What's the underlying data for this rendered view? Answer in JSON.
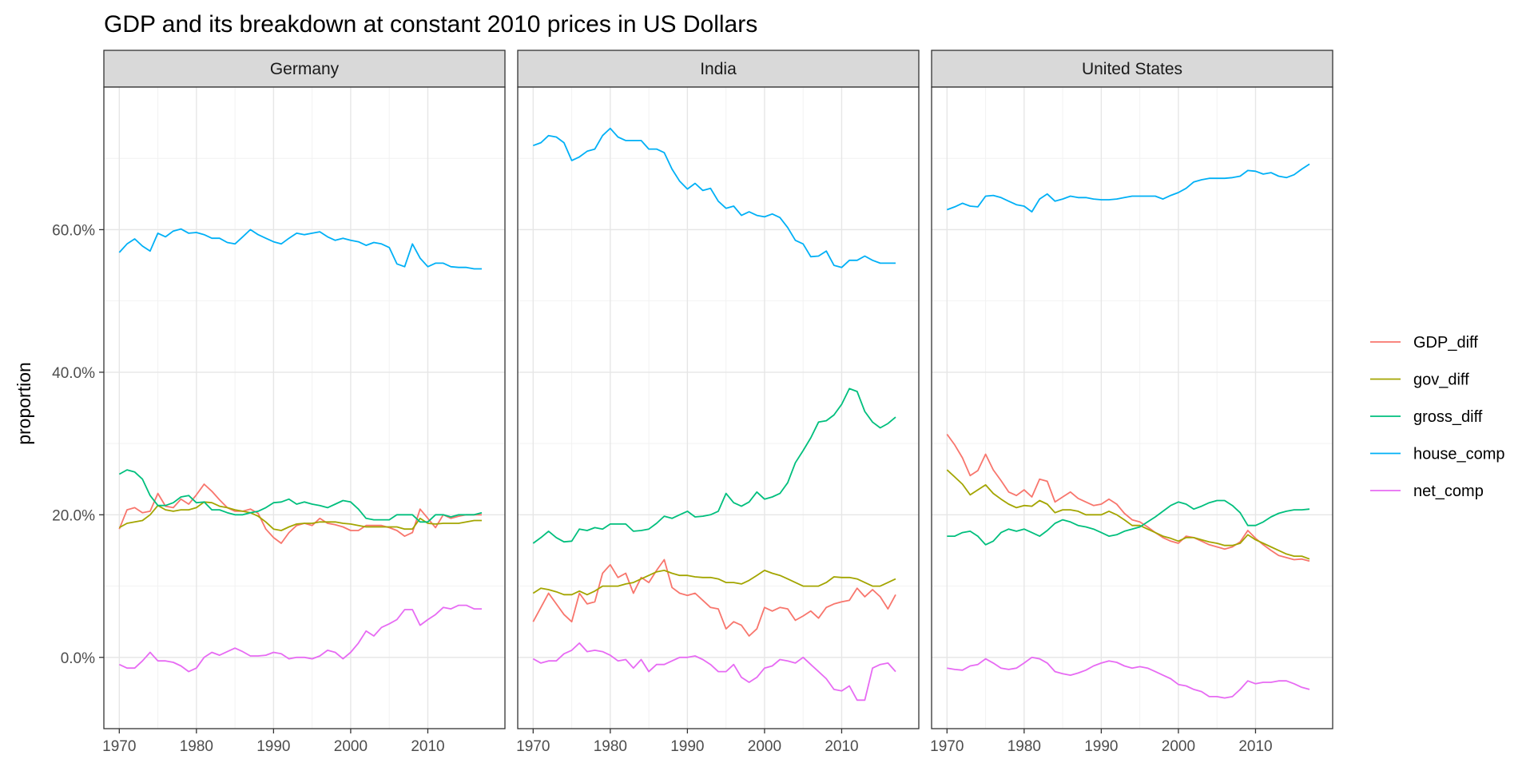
{
  "chart_data": {
    "type": "line",
    "title": "GDP and its breakdown at constant 2010 prices in US Dollars",
    "xlabel": "",
    "ylabel": "proportion",
    "y_format": "percent",
    "xlim": [
      1968,
      2020
    ],
    "ylim": [
      -0.1,
      0.8
    ],
    "x_ticks": [
      1970,
      1980,
      1990,
      2000,
      2010
    ],
    "x_tick_labels": [
      "1970",
      "1980",
      "1990",
      "2000",
      "2010"
    ],
    "y_ticks": [
      0,
      0.2,
      0.4,
      0.6
    ],
    "y_tick_labels": [
      "0.0%",
      "20.0%",
      "40.0%",
      "60.0%"
    ],
    "grid": true,
    "legend_position": "right",
    "legend": [
      "GDP_diff",
      "gov_diff",
      "gross_diff",
      "house_comp",
      "net_comp"
    ],
    "colors": {
      "GDP_diff": "#F8766D",
      "gov_diff": "#A3A500",
      "gross_diff": "#00BF7D",
      "house_comp": "#00B0F6",
      "net_comp": "#E76BF3"
    },
    "x": [
      1970,
      1971,
      1972,
      1973,
      1974,
      1975,
      1976,
      1977,
      1978,
      1979,
      1980,
      1981,
      1982,
      1983,
      1984,
      1985,
      1986,
      1987,
      1988,
      1989,
      1990,
      1991,
      1992,
      1993,
      1994,
      1995,
      1996,
      1997,
      1998,
      1999,
      2000,
      2001,
      2002,
      2003,
      2004,
      2005,
      2006,
      2007,
      2008,
      2009,
      2010,
      2011,
      2012,
      2013,
      2014,
      2015,
      2016,
      2017
    ],
    "panels": [
      {
        "name": "Germany",
        "series": [
          {
            "name": "GDP_diff",
            "values": [
              0.18,
              0.207,
              0.21,
              0.203,
              0.205,
              0.23,
              0.212,
              0.21,
              0.222,
              0.215,
              0.228,
              0.243,
              0.233,
              0.221,
              0.21,
              0.205,
              0.205,
              0.208,
              0.202,
              0.18,
              0.168,
              0.16,
              0.175,
              0.185,
              0.188,
              0.185,
              0.195,
              0.188,
              0.186,
              0.183,
              0.178,
              0.178,
              0.185,
              0.185,
              0.185,
              0.182,
              0.178,
              0.17,
              0.175,
              0.208,
              0.195,
              0.182,
              0.2,
              0.195,
              0.198,
              0.2,
              0.2,
              0.2
            ]
          },
          {
            "name": "gov_diff",
            "values": [
              0.182,
              0.188,
              0.19,
              0.192,
              0.2,
              0.213,
              0.207,
              0.205,
              0.207,
              0.207,
              0.21,
              0.218,
              0.217,
              0.212,
              0.21,
              0.207,
              0.205,
              0.203,
              0.198,
              0.19,
              0.18,
              0.178,
              0.183,
              0.187,
              0.188,
              0.188,
              0.19,
              0.19,
              0.19,
              0.188,
              0.187,
              0.185,
              0.183,
              0.183,
              0.183,
              0.183,
              0.183,
              0.18,
              0.18,
              0.195,
              0.188,
              0.187,
              0.188,
              0.188,
              0.188,
              0.19,
              0.192,
              0.192
            ]
          },
          {
            "name": "gross_diff",
            "values": [
              0.257,
              0.263,
              0.26,
              0.25,
              0.227,
              0.213,
              0.213,
              0.217,
              0.225,
              0.227,
              0.217,
              0.218,
              0.207,
              0.207,
              0.203,
              0.2,
              0.2,
              0.203,
              0.205,
              0.21,
              0.217,
              0.218,
              0.222,
              0.215,
              0.218,
              0.215,
              0.213,
              0.21,
              0.215,
              0.22,
              0.218,
              0.208,
              0.195,
              0.193,
              0.193,
              0.193,
              0.2,
              0.2,
              0.2,
              0.19,
              0.19,
              0.2,
              0.2,
              0.197,
              0.2,
              0.2,
              0.2,
              0.203
            ]
          },
          {
            "name": "house_comp",
            "values": [
              0.568,
              0.58,
              0.587,
              0.577,
              0.57,
              0.595,
              0.59,
              0.598,
              0.601,
              0.595,
              0.596,
              0.593,
              0.588,
              0.588,
              0.582,
              0.58,
              0.59,
              0.6,
              0.593,
              0.588,
              0.583,
              0.58,
              0.588,
              0.595,
              0.593,
              0.595,
              0.597,
              0.59,
              0.585,
              0.588,
              0.585,
              0.583,
              0.578,
              0.582,
              0.58,
              0.575,
              0.552,
              0.548,
              0.58,
              0.56,
              0.548,
              0.553,
              0.553,
              0.548,
              0.547,
              0.547,
              0.545,
              0.545
            ]
          },
          {
            "name": "net_comp",
            "values": [
              -0.01,
              -0.015,
              -0.015,
              -0.005,
              0.007,
              -0.005,
              -0.005,
              -0.007,
              -0.012,
              -0.02,
              -0.015,
              0.0,
              0.007,
              0.003,
              0.008,
              0.013,
              0.008,
              0.002,
              0.002,
              0.003,
              0.007,
              0.005,
              -0.002,
              0.0,
              0.0,
              -0.002,
              0.002,
              0.01,
              0.007,
              -0.002,
              0.007,
              0.02,
              0.037,
              0.03,
              0.042,
              0.047,
              0.053,
              0.067,
              0.067,
              0.045,
              0.053,
              0.06,
              0.07,
              0.068,
              0.073,
              0.073,
              0.068,
              0.068
            ]
          }
        ]
      },
      {
        "name": "India",
        "series": [
          {
            "name": "GDP_diff",
            "values": [
              0.05,
              0.07,
              0.09,
              0.075,
              0.06,
              0.05,
              0.09,
              0.075,
              0.078,
              0.118,
              0.13,
              0.112,
              0.118,
              0.09,
              0.112,
              0.105,
              0.122,
              0.137,
              0.098,
              0.09,
              0.087,
              0.09,
              0.08,
              0.07,
              0.068,
              0.04,
              0.05,
              0.045,
              0.03,
              0.04,
              0.07,
              0.065,
              0.07,
              0.068,
              0.052,
              0.058,
              0.065,
              0.055,
              0.07,
              0.075,
              0.078,
              0.08,
              0.097,
              0.085,
              0.095,
              0.085,
              0.068,
              0.088
            ]
          },
          {
            "name": "gov_diff",
            "values": [
              0.09,
              0.097,
              0.095,
              0.092,
              0.088,
              0.088,
              0.093,
              0.088,
              0.093,
              0.1,
              0.1,
              0.1,
              0.103,
              0.105,
              0.11,
              0.115,
              0.12,
              0.122,
              0.118,
              0.115,
              0.115,
              0.113,
              0.112,
              0.112,
              0.11,
              0.105,
              0.105,
              0.103,
              0.108,
              0.115,
              0.122,
              0.118,
              0.115,
              0.11,
              0.105,
              0.1,
              0.1,
              0.1,
              0.105,
              0.113,
              0.112,
              0.112,
              0.11,
              0.105,
              0.1,
              0.1,
              0.105,
              0.11
            ]
          },
          {
            "name": "gross_diff",
            "values": [
              0.16,
              0.168,
              0.177,
              0.168,
              0.162,
              0.163,
              0.18,
              0.178,
              0.182,
              0.18,
              0.187,
              0.187,
              0.187,
              0.177,
              0.178,
              0.18,
              0.188,
              0.198,
              0.195,
              0.2,
              0.205,
              0.197,
              0.198,
              0.2,
              0.205,
              0.23,
              0.217,
              0.212,
              0.218,
              0.232,
              0.222,
              0.225,
              0.23,
              0.245,
              0.273,
              0.29,
              0.308,
              0.33,
              0.332,
              0.34,
              0.355,
              0.377,
              0.373,
              0.345,
              0.33,
              0.322,
              0.328,
              0.337
            ]
          },
          {
            "name": "house_comp",
            "values": [
              0.718,
              0.722,
              0.732,
              0.73,
              0.722,
              0.697,
              0.702,
              0.71,
              0.713,
              0.732,
              0.742,
              0.73,
              0.725,
              0.725,
              0.725,
              0.713,
              0.713,
              0.708,
              0.685,
              0.668,
              0.657,
              0.665,
              0.655,
              0.658,
              0.64,
              0.63,
              0.633,
              0.62,
              0.625,
              0.62,
              0.618,
              0.622,
              0.617,
              0.603,
              0.585,
              0.58,
              0.562,
              0.563,
              0.57,
              0.55,
              0.547,
              0.557,
              0.557,
              0.563,
              0.557,
              0.553,
              0.553,
              0.553
            ]
          },
          {
            "name": "net_comp",
            "values": [
              -0.002,
              -0.008,
              -0.005,
              -0.005,
              0.005,
              0.01,
              0.02,
              0.008,
              0.01,
              0.008,
              0.003,
              -0.005,
              -0.003,
              -0.015,
              -0.003,
              -0.02,
              -0.01,
              -0.01,
              -0.005,
              0.0,
              0.0,
              0.002,
              -0.003,
              -0.01,
              -0.02,
              -0.02,
              -0.01,
              -0.028,
              -0.035,
              -0.028,
              -0.015,
              -0.012,
              -0.003,
              -0.005,
              -0.008,
              0.0,
              -0.01,
              -0.02,
              -0.03,
              -0.045,
              -0.047,
              -0.04,
              -0.06,
              -0.06,
              -0.015,
              -0.01,
              -0.008,
              -0.02
            ]
          }
        ]
      },
      {
        "name": "United States",
        "series": [
          {
            "name": "GDP_diff",
            "values": [
              0.313,
              0.298,
              0.28,
              0.255,
              0.262,
              0.285,
              0.263,
              0.248,
              0.232,
              0.227,
              0.235,
              0.225,
              0.25,
              0.247,
              0.218,
              0.225,
              0.232,
              0.223,
              0.218,
              0.213,
              0.215,
              0.222,
              0.215,
              0.202,
              0.193,
              0.19,
              0.183,
              0.175,
              0.168,
              0.163,
              0.16,
              0.17,
              0.168,
              0.163,
              0.158,
              0.155,
              0.152,
              0.155,
              0.162,
              0.178,
              0.167,
              0.158,
              0.15,
              0.143,
              0.14,
              0.137,
              0.138,
              0.135
            ]
          },
          {
            "name": "gov_diff",
            "values": [
              0.263,
              0.253,
              0.243,
              0.228,
              0.235,
              0.242,
              0.23,
              0.222,
              0.215,
              0.21,
              0.213,
              0.212,
              0.22,
              0.215,
              0.203,
              0.207,
              0.207,
              0.205,
              0.2,
              0.2,
              0.2,
              0.205,
              0.2,
              0.193,
              0.185,
              0.185,
              0.18,
              0.175,
              0.17,
              0.167,
              0.163,
              0.168,
              0.168,
              0.165,
              0.162,
              0.16,
              0.157,
              0.157,
              0.16,
              0.172,
              0.165,
              0.16,
              0.155,
              0.15,
              0.145,
              0.142,
              0.142,
              0.138
            ]
          },
          {
            "name": "gross_diff",
            "values": [
              0.17,
              0.17,
              0.175,
              0.177,
              0.17,
              0.158,
              0.163,
              0.175,
              0.18,
              0.177,
              0.18,
              0.175,
              0.17,
              0.178,
              0.188,
              0.193,
              0.19,
              0.185,
              0.183,
              0.18,
              0.175,
              0.17,
              0.172,
              0.177,
              0.18,
              0.183,
              0.19,
              0.197,
              0.205,
              0.213,
              0.218,
              0.215,
              0.208,
              0.212,
              0.217,
              0.22,
              0.22,
              0.213,
              0.203,
              0.185,
              0.185,
              0.19,
              0.197,
              0.202,
              0.205,
              0.207,
              0.207,
              0.208
            ]
          },
          {
            "name": "house_comp",
            "values": [
              0.628,
              0.632,
              0.637,
              0.633,
              0.632,
              0.647,
              0.648,
              0.645,
              0.64,
              0.635,
              0.633,
              0.625,
              0.643,
              0.65,
              0.64,
              0.643,
              0.647,
              0.645,
              0.645,
              0.643,
              0.642,
              0.642,
              0.643,
              0.645,
              0.647,
              0.647,
              0.647,
              0.647,
              0.643,
              0.648,
              0.652,
              0.658,
              0.667,
              0.67,
              0.672,
              0.672,
              0.672,
              0.673,
              0.675,
              0.683,
              0.682,
              0.678,
              0.68,
              0.675,
              0.673,
              0.677,
              0.685,
              0.692
            ]
          },
          {
            "name": "net_comp",
            "values": [
              -0.015,
              -0.017,
              -0.018,
              -0.012,
              -0.01,
              -0.002,
              -0.008,
              -0.015,
              -0.017,
              -0.015,
              -0.008,
              0.0,
              -0.002,
              -0.008,
              -0.02,
              -0.023,
              -0.025,
              -0.022,
              -0.018,
              -0.012,
              -0.008,
              -0.005,
              -0.007,
              -0.012,
              -0.015,
              -0.013,
              -0.015,
              -0.02,
              -0.025,
              -0.03,
              -0.038,
              -0.04,
              -0.045,
              -0.048,
              -0.055,
              -0.055,
              -0.057,
              -0.055,
              -0.045,
              -0.033,
              -0.037,
              -0.035,
              -0.035,
              -0.033,
              -0.033,
              -0.037,
              -0.042,
              -0.045
            ]
          }
        ]
      }
    ]
  }
}
